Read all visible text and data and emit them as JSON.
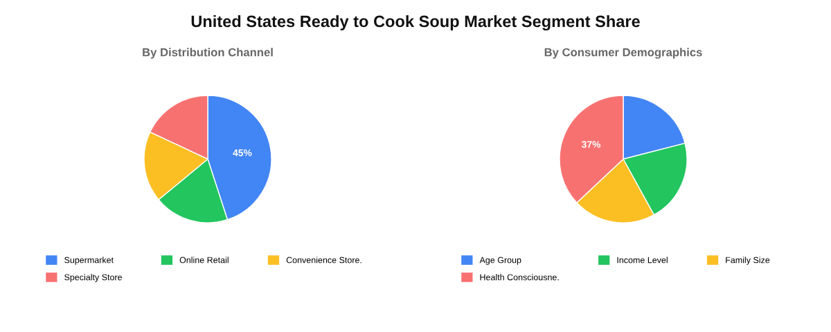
{
  "chart_data": [
    {
      "type": "pie",
      "title": "United States Ready to Cook Soup Market Segment Share",
      "subtitle": "By Distribution Channel",
      "categories": [
        "Supermarket",
        "Online Retail",
        "Convenience Store.",
        "Specialty Store"
      ],
      "values": [
        45,
        19,
        18,
        18
      ],
      "colors": [
        "#4285f4",
        "#22c55e",
        "#fbbf24",
        "#f87171"
      ],
      "value_labels": [
        "45%",
        null,
        null,
        null
      ],
      "legend": "bottom"
    },
    {
      "type": "pie",
      "subtitle": "By Consumer Demographics",
      "categories": [
        "Age Group",
        "Income Level",
        "Family Size",
        "Health Consciousne."
      ],
      "values": [
        21,
        21,
        21,
        37
      ],
      "colors": [
        "#4285f4",
        "#22c55e",
        "#fbbf24",
        "#f87171"
      ],
      "value_labels": [
        null,
        null,
        null,
        "37%"
      ],
      "legend": "bottom"
    }
  ]
}
